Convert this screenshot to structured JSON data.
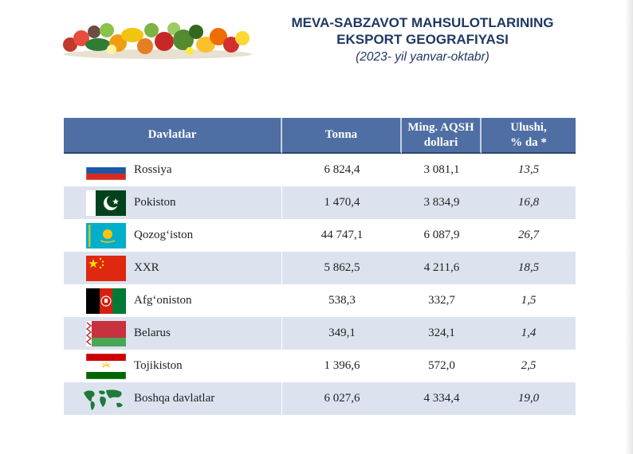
{
  "title": {
    "line1": "MEVA-SABZAVOT MAHSULOTLARINING",
    "line2": "EKSPORT GEOGRAFIYASI",
    "subtitle": "(2023- yil yanvar-oktabr)"
  },
  "table": {
    "headers": {
      "country": "Davlatlar",
      "tonna": "Tonna",
      "usd_line1": "Ming. AQSH",
      "usd_line2": "dollari",
      "share_line1": "Ulushi,",
      "share_line2": "% da *"
    },
    "rows": [
      {
        "country": "Rossiya",
        "flag": "russia-flag",
        "tonna": "6 824,4",
        "usd": "3 081,1",
        "share": "13,5"
      },
      {
        "country": "Pokiston",
        "flag": "pakistan-flag",
        "tonna": "1 470,4",
        "usd": "3 834,9",
        "share": "16,8"
      },
      {
        "country": "Qozog‘iston",
        "flag": "kazakhstan-flag",
        "tonna": "44 747,1",
        "usd": "6 087,9",
        "share": "26,7"
      },
      {
        "country": "XXR",
        "flag": "china-flag",
        "tonna": "5 862,5",
        "usd": "4 211,6",
        "share": "18,5"
      },
      {
        "country": "Afg‘oniston",
        "flag": "afghanistan-flag",
        "tonna": "538,3",
        "usd": "332,7",
        "share": "1,5"
      },
      {
        "country": "Belarus",
        "flag": "belarus-flag",
        "tonna": "349,1",
        "usd": "324,1",
        "share": "1,4"
      },
      {
        "country": "Tojikiston",
        "flag": "tajikistan-flag",
        "tonna": "1 396,6",
        "usd": "572,0",
        "share": "2,5"
      },
      {
        "country": "Boshqa davlatlar",
        "flag": "world-map-icon",
        "tonna": "6 027,6",
        "usd": "4 334,4",
        "share": "19,0"
      }
    ]
  },
  "colors": {
    "title": "#1f3864",
    "header_bg": "#4f6fa4",
    "row_shade": "#dce3ef"
  }
}
